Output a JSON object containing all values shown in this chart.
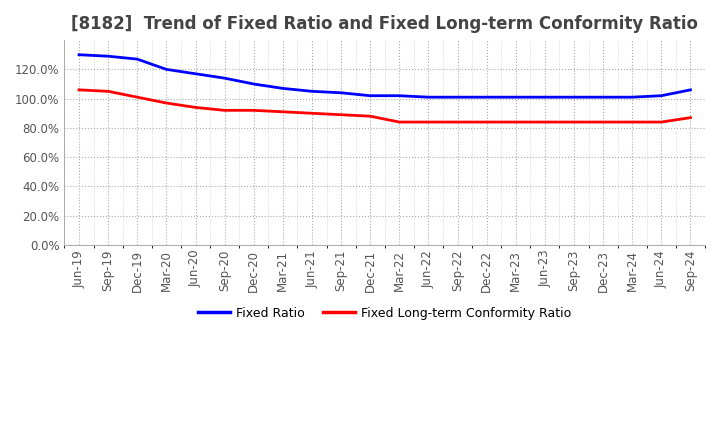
{
  "title": "[8182]  Trend of Fixed Ratio and Fixed Long-term Conformity Ratio",
  "x_labels": [
    "Jun-19",
    "Sep-19",
    "Dec-19",
    "Mar-20",
    "Jun-20",
    "Sep-20",
    "Dec-20",
    "Mar-21",
    "Jun-21",
    "Sep-21",
    "Dec-21",
    "Mar-22",
    "Jun-22",
    "Sep-22",
    "Dec-22",
    "Mar-23",
    "Jun-23",
    "Sep-23",
    "Dec-23",
    "Mar-24",
    "Jun-24",
    "Sep-24"
  ],
  "fixed_ratio": [
    1.3,
    1.29,
    1.27,
    1.2,
    1.17,
    1.14,
    1.1,
    1.07,
    1.05,
    1.04,
    1.02,
    1.02,
    1.01,
    1.01,
    1.01,
    1.01,
    1.01,
    1.01,
    1.01,
    1.01,
    1.02,
    1.06
  ],
  "fixed_lt_ratio": [
    1.06,
    1.05,
    1.01,
    0.97,
    0.94,
    0.92,
    0.92,
    0.91,
    0.9,
    0.89,
    0.88,
    0.84,
    0.84,
    0.84,
    0.84,
    0.84,
    0.84,
    0.84,
    0.84,
    0.84,
    0.84,
    0.87
  ],
  "ylim": [
    0.0,
    1.4
  ],
  "yticks": [
    0.0,
    0.2,
    0.4,
    0.6,
    0.8,
    1.0,
    1.2
  ],
  "fixed_ratio_color": "#0000FF",
  "fixed_lt_ratio_color": "#FF0000",
  "background_color": "#FFFFFF",
  "plot_bg_color": "#FFFFFF",
  "grid_color": "#AAAAAA",
  "title_fontsize": 12,
  "label_fontsize": 8.5,
  "legend_fontsize": 9,
  "title_color": "#444444"
}
